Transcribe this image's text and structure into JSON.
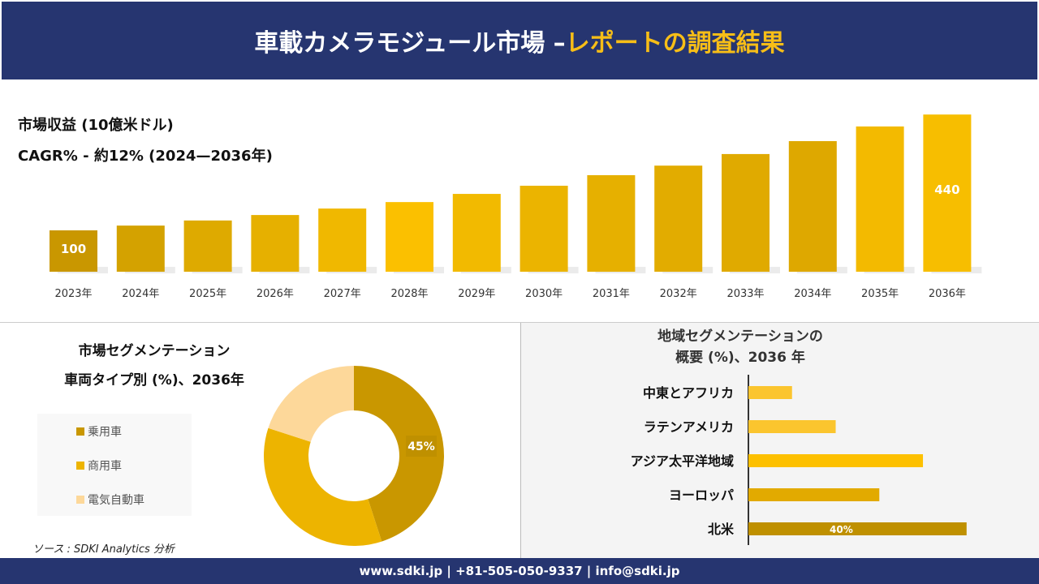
{
  "header": {
    "title_main": "車載カメラモジュール市場 –",
    "title_accent": "レポートの調査結果"
  },
  "revenue": {
    "label": "市場収益 (10億米ドル)",
    "cagr": "CAGR% - 約12% (2024—2036年)"
  },
  "segment": {
    "title_line1": "市場セグメンテーション",
    "title_line2": "車両タイプ別 (%)、2036年"
  },
  "region": {
    "title_line1": "地域セグメンテーションの",
    "title_line2": "概要 (%)、2036 年"
  },
  "source": "ソース : SDKI Analytics 分析",
  "footer": "www.sdki.jp | +81-505-050-9337 | info@sdki.jp",
  "colors": {
    "navy": "#263570",
    "accent": "#F7BE17",
    "gold_dark": "#C99700",
    "gold": "#EDB400",
    "peach": "#FDD89A"
  },
  "chart_data": [
    {
      "type": "bar",
      "categories": [
        "2023年",
        "2024年",
        "2025年",
        "2026年",
        "2027年",
        "2028年",
        "2029年",
        "2030年",
        "2031年",
        "2032年",
        "2033年",
        "2034年",
        "2035年",
        "2036年"
      ],
      "values": [
        100,
        114,
        129,
        145,
        164,
        183,
        207,
        231,
        262,
        290,
        324,
        362,
        405,
        440
      ],
      "data_labels": {
        "0": "100",
        "13": "440"
      }
    },
    {
      "type": "pie",
      "donut": true,
      "categories": [
        "乗用車",
        "商用車",
        "電気自動車"
      ],
      "values": [
        45,
        35,
        20
      ],
      "data_labels": {
        "0": "45%"
      },
      "legend": "left"
    },
    {
      "type": "bar",
      "orientation": "horizontal",
      "categories": [
        "中東とアフリカ",
        "ラテンアメリカ",
        "アジア太平洋地域",
        "ヨーロッパ",
        "北米"
      ],
      "values": [
        8,
        16,
        32,
        24,
        40
      ],
      "data_labels": {
        "4": "40%"
      }
    }
  ]
}
